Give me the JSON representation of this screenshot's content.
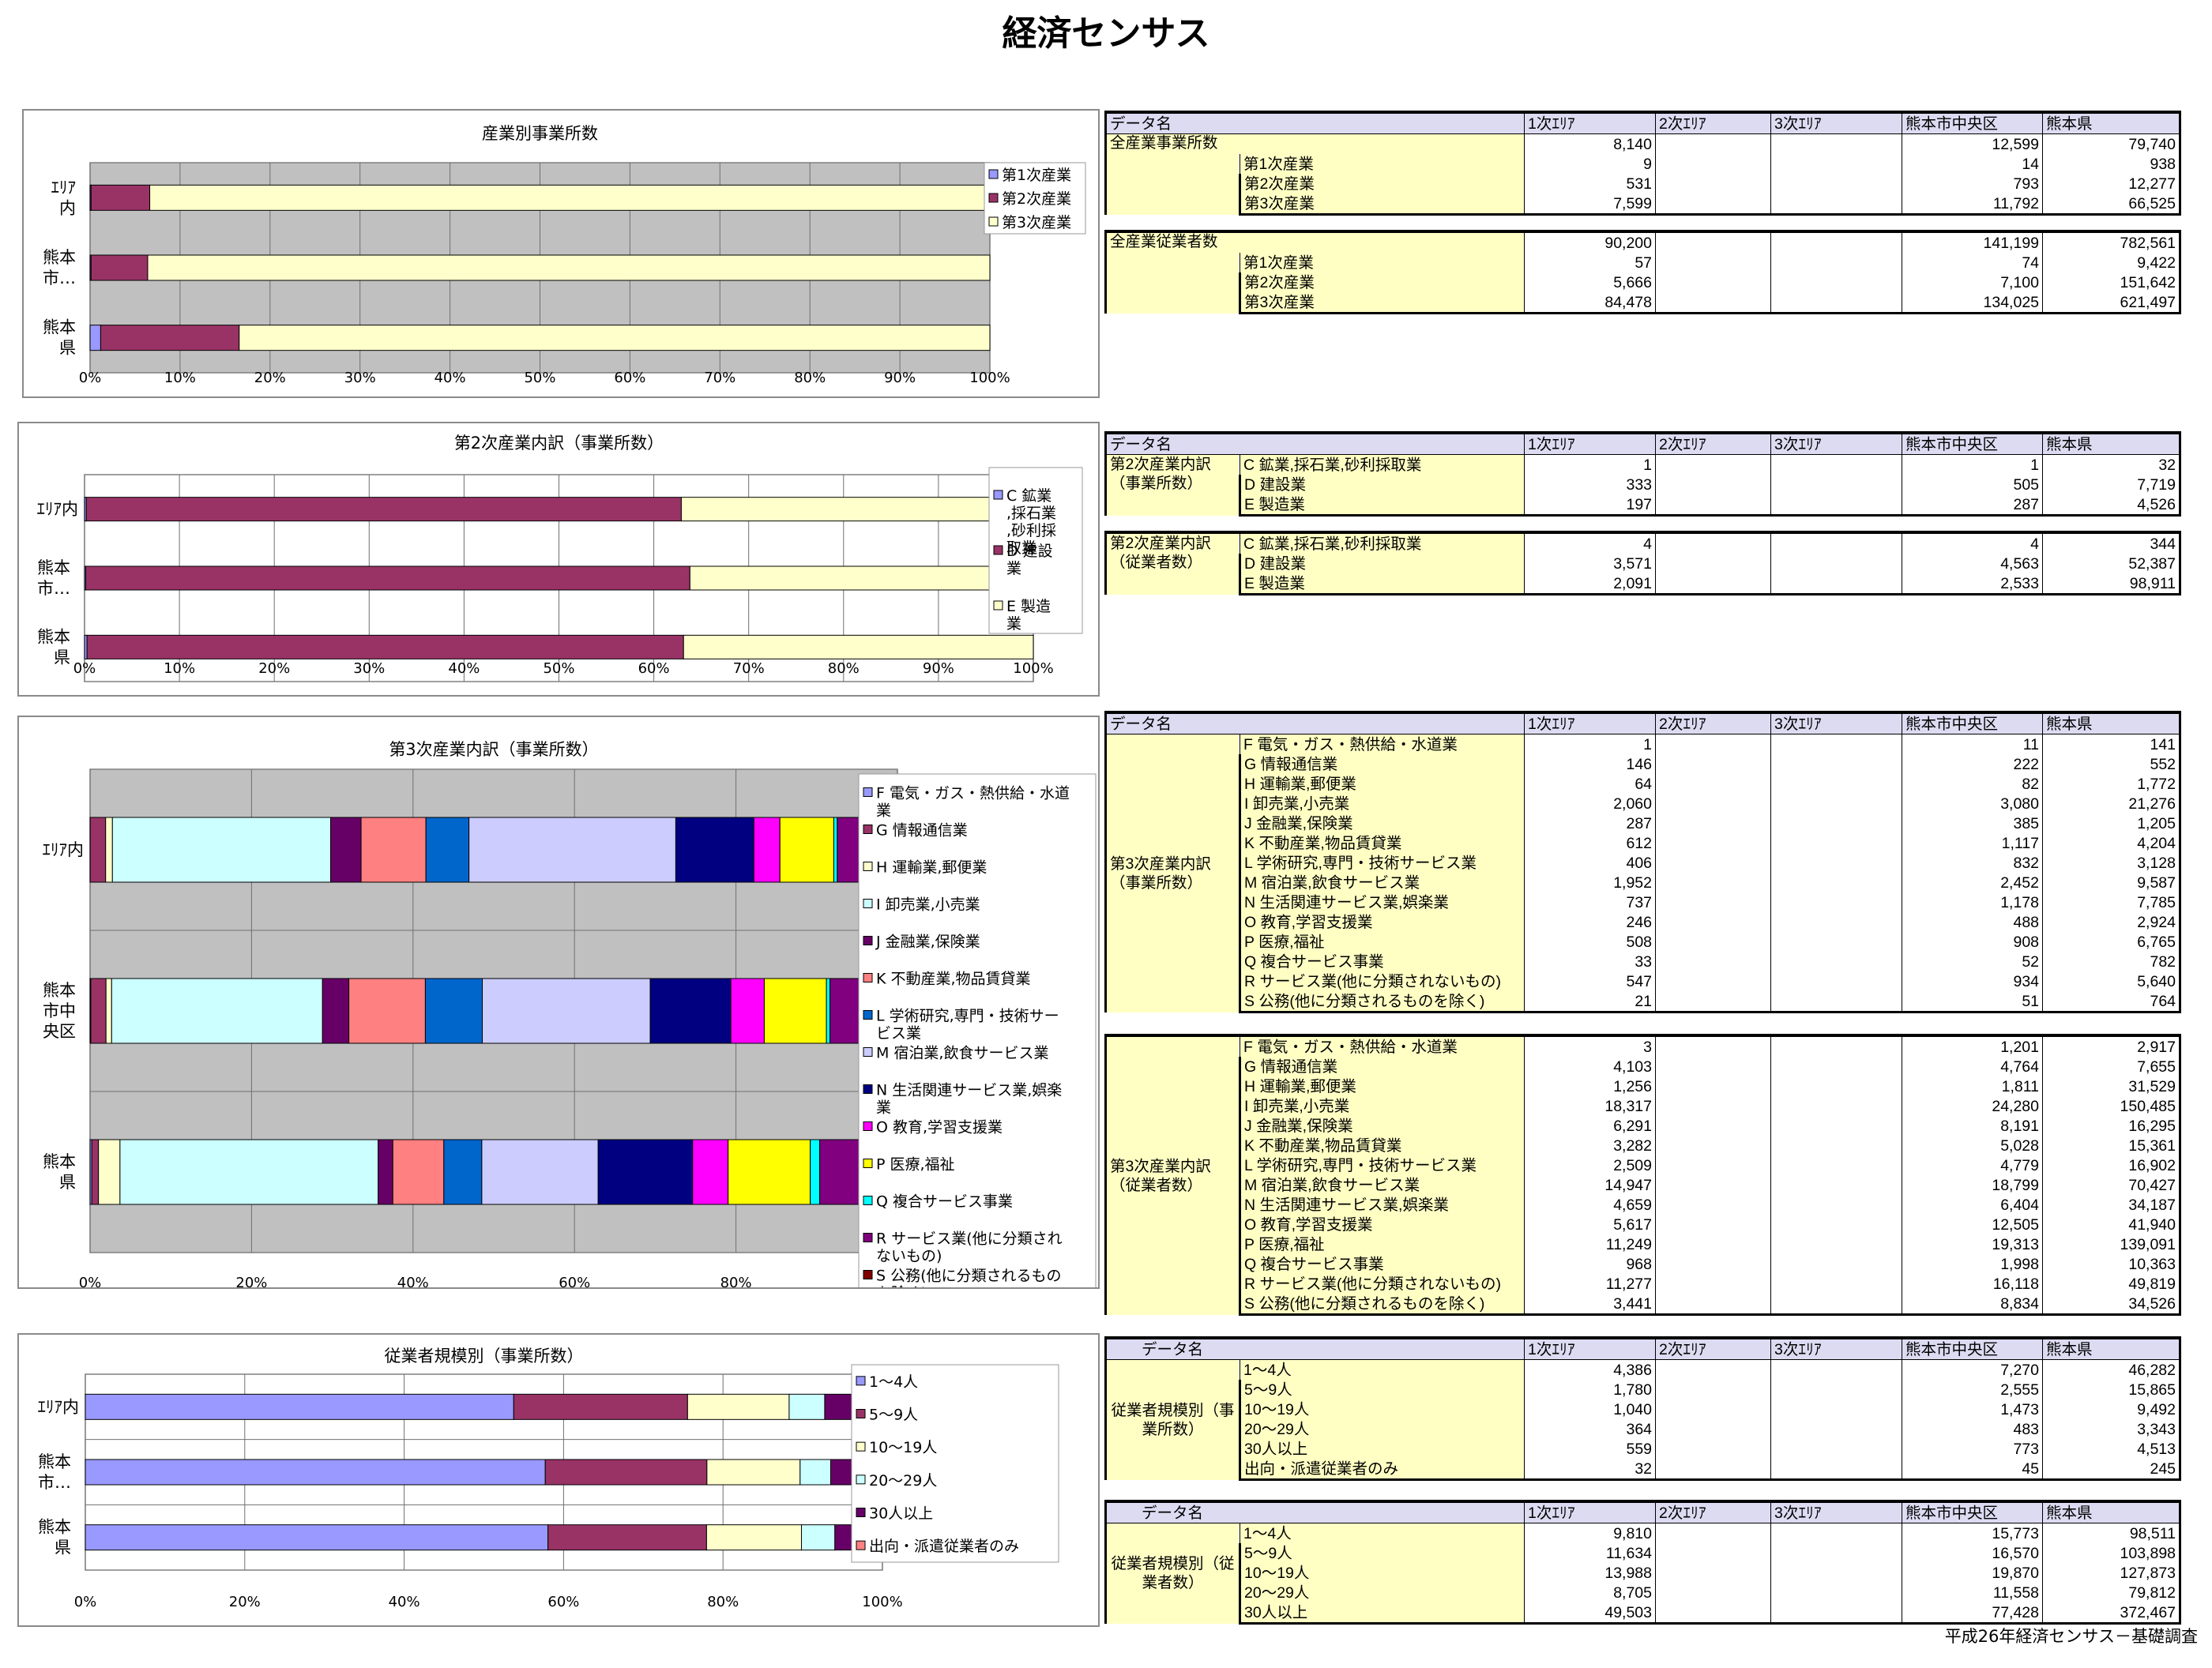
{
  "page_title": "経済センサス",
  "footer": "平成26年経済センサス－基礎調査",
  "table_headers": {
    "name": "データ名",
    "cols": [
      "1次ｴﾘｱ",
      "2次ｴﾘｱ",
      "3次ｴﾘｱ",
      "熊本市中央区",
      "熊本県"
    ]
  },
  "chart_data": [
    {
      "type": "bar",
      "orientation": "horizontal",
      "stacked": "percent",
      "title": "産業別事業所数",
      "categories": [
        "ｴﾘｱ内",
        "熊本市…",
        "熊本県"
      ],
      "series": [
        {
          "name": "第1次産業",
          "color": "#9999ff",
          "values": [
            9,
            14,
            938
          ]
        },
        {
          "name": "第2次産業",
          "color": "#993366",
          "values": [
            531,
            793,
            12277
          ]
        },
        {
          "name": "第3次産業",
          "color": "#ffffcc",
          "values": [
            7599,
            11792,
            66525
          ]
        }
      ],
      "xlim": [
        0,
        100
      ],
      "xticks": [
        "0%",
        "10%",
        "20%",
        "30%",
        "40%",
        "50%",
        "60%",
        "70%",
        "80%",
        "90%",
        "100%"
      ],
      "grid": true,
      "legend": "right"
    },
    {
      "type": "bar",
      "orientation": "horizontal",
      "stacked": "percent",
      "title": "第2次産業内訳（事業所数）",
      "categories": [
        "ｴﾘｱ内",
        "熊本市…",
        "熊本県"
      ],
      "series": [
        {
          "name": "C 鉱業,採石業,砂利採取業",
          "color": "#9999ff",
          "values": [
            1,
            1,
            32
          ]
        },
        {
          "name": "D 建設業",
          "color": "#993366",
          "values": [
            333,
            505,
            7719
          ]
        },
        {
          "name": "E 製造業",
          "color": "#ffffcc",
          "values": [
            197,
            287,
            4526
          ]
        }
      ],
      "xlim": [
        0,
        100
      ],
      "xticks": [
        "0%",
        "10%",
        "20%",
        "30%",
        "40%",
        "50%",
        "60%",
        "70%",
        "80%",
        "90%",
        "100%"
      ],
      "grid": true,
      "legend": "right"
    },
    {
      "type": "bar",
      "orientation": "horizontal",
      "stacked": "percent",
      "title": "第3次産業内訳（事業所数）",
      "categories": [
        "ｴﾘｱ内",
        "熊本市中央区",
        "熊本県"
      ],
      "series": [
        {
          "name": "F 電気・ガス・熱供給・水道業",
          "color": "#9999ff",
          "values": [
            1,
            11,
            141
          ]
        },
        {
          "name": "G 情報通信業",
          "color": "#993366",
          "values": [
            146,
            222,
            552
          ]
        },
        {
          "name": "H 運輸業,郵便業",
          "color": "#ffffcc",
          "values": [
            64,
            82,
            1772
          ]
        },
        {
          "name": "I 卸売業,小売業",
          "color": "#ccffff",
          "values": [
            2060,
            3080,
            21276
          ]
        },
        {
          "name": "J 金融業,保険業",
          "color": "#660066",
          "values": [
            287,
            385,
            1205
          ]
        },
        {
          "name": "K 不動産業,物品賃貸業",
          "color": "#ff8080",
          "values": [
            612,
            1117,
            4204
          ]
        },
        {
          "name": "L 学術研究,専門・技術サービス業",
          "color": "#0066cc",
          "values": [
            406,
            832,
            3128
          ]
        },
        {
          "name": "M 宿泊業,飲食サービス業",
          "color": "#ccccff",
          "values": [
            1952,
            2452,
            9587
          ]
        },
        {
          "name": "N 生活関連サービス業,娯楽業",
          "color": "#000080",
          "values": [
            737,
            1178,
            7785
          ]
        },
        {
          "name": "O 教育,学習支援業",
          "color": "#ff00ff",
          "values": [
            246,
            488,
            2924
          ]
        },
        {
          "name": "P 医療,福祉",
          "color": "#ffff00",
          "values": [
            508,
            908,
            6765
          ]
        },
        {
          "name": "Q 複合サービス事業",
          "color": "#00ffff",
          "values": [
            33,
            52,
            782
          ]
        },
        {
          "name": "R サービス業(他に分類されないもの)",
          "color": "#800080",
          "values": [
            547,
            934,
            5640
          ]
        },
        {
          "name": "S 公務(他に分類されるものを除く)",
          "color": "#800000",
          "values": [
            21,
            51,
            764
          ]
        }
      ],
      "xlim": [
        0,
        100
      ],
      "xticks": [
        "0%",
        "20%",
        "40%",
        "60%",
        "80%",
        "100%"
      ],
      "grid": true,
      "legend": "right"
    },
    {
      "type": "bar",
      "orientation": "horizontal",
      "stacked": "percent",
      "title": "従業者規模別（事業所数）",
      "categories": [
        "ｴﾘｱ内",
        "熊本市…",
        "熊本県"
      ],
      "series": [
        {
          "name": "1～4人",
          "color": "#9999ff",
          "values": [
            4386,
            7270,
            46282
          ]
        },
        {
          "name": "5～9人",
          "color": "#993366",
          "values": [
            1780,
            2555,
            15865
          ]
        },
        {
          "name": "10～19人",
          "color": "#ffffcc",
          "values": [
            1040,
            1473,
            9492
          ]
        },
        {
          "name": "20～29人",
          "color": "#ccffff",
          "values": [
            364,
            483,
            3343
          ]
        },
        {
          "name": "30人以上",
          "color": "#660066",
          "values": [
            559,
            773,
            4513
          ]
        },
        {
          "name": "出向・派遣従業者のみ",
          "color": "#ff8080",
          "values": [
            32,
            45,
            245
          ]
        }
      ],
      "xlim": [
        0,
        100
      ],
      "xticks": [
        "0%",
        "20%",
        "40%",
        "60%",
        "80%",
        "100%"
      ],
      "grid": true,
      "legend": "right"
    }
  ],
  "tables": [
    {
      "group_label": "全産業事業所数",
      "group_style": "inline",
      "first_row_is_total": true,
      "rows": [
        {
          "label": "",
          "values": [
            "8,140",
            "",
            "",
            "12,599",
            "79,740"
          ]
        },
        {
          "label": "第1次産業",
          "values": [
            "9",
            "",
            "",
            "14",
            "938"
          ]
        },
        {
          "label": "第2次産業",
          "values": [
            "531",
            "",
            "",
            "793",
            "12,277"
          ]
        },
        {
          "label": "第3次産業",
          "values": [
            "7,599",
            "",
            "",
            "11,792",
            "66,525"
          ]
        }
      ]
    },
    {
      "group_label": "全産業従業者数",
      "group_style": "inline",
      "first_row_is_total": true,
      "rows": [
        {
          "label": "",
          "values": [
            "90,200",
            "",
            "",
            "141,199",
            "782,561"
          ]
        },
        {
          "label": "第1次産業",
          "values": [
            "57",
            "",
            "",
            "74",
            "9,422"
          ]
        },
        {
          "label": "第2次産業",
          "values": [
            "5,666",
            "",
            "",
            "7,100",
            "151,642"
          ]
        },
        {
          "label": "第3次産業",
          "values": [
            "84,478",
            "",
            "",
            "134,025",
            "621,497"
          ]
        }
      ]
    },
    {
      "group_label": "第2次産業内訳（事業所数）",
      "group_style": "top",
      "rows": [
        {
          "label": "C 鉱業,採石業,砂利採取業",
          "values": [
            "1",
            "",
            "",
            "1",
            "32"
          ]
        },
        {
          "label": "D 建設業",
          "values": [
            "333",
            "",
            "",
            "505",
            "7,719"
          ]
        },
        {
          "label": "E 製造業",
          "values": [
            "197",
            "",
            "",
            "287",
            "4,526"
          ]
        }
      ]
    },
    {
      "group_label": "第2次産業内訳（従業者数）",
      "group_style": "top",
      "rows": [
        {
          "label": "C 鉱業,採石業,砂利採取業",
          "values": [
            "4",
            "",
            "",
            "4",
            "344"
          ]
        },
        {
          "label": "D 建設業",
          "values": [
            "3,571",
            "",
            "",
            "4,563",
            "52,387"
          ]
        },
        {
          "label": "E 製造業",
          "values": [
            "2,091",
            "",
            "",
            "2,533",
            "98,911"
          ]
        }
      ]
    },
    {
      "group_label": "第3次産業内訳（事業所数）",
      "group_style": "middle",
      "rows": [
        {
          "label": "F 電気・ガス・熱供給・水道業",
          "values": [
            "1",
            "",
            "",
            "11",
            "141"
          ]
        },
        {
          "label": "G 情報通信業",
          "values": [
            "146",
            "",
            "",
            "222",
            "552"
          ]
        },
        {
          "label": "H 運輸業,郵便業",
          "values": [
            "64",
            "",
            "",
            "82",
            "1,772"
          ]
        },
        {
          "label": "I 卸売業,小売業",
          "values": [
            "2,060",
            "",
            "",
            "3,080",
            "21,276"
          ]
        },
        {
          "label": "J 金融業,保険業",
          "values": [
            "287",
            "",
            "",
            "385",
            "1,205"
          ]
        },
        {
          "label": "K 不動産業,物品賃貸業",
          "values": [
            "612",
            "",
            "",
            "1,117",
            "4,204"
          ]
        },
        {
          "label": "L 学術研究,専門・技術サービス業",
          "values": [
            "406",
            "",
            "",
            "832",
            "3,128"
          ]
        },
        {
          "label": "M 宿泊業,飲食サービス業",
          "values": [
            "1,952",
            "",
            "",
            "2,452",
            "9,587"
          ]
        },
        {
          "label": "N 生活関連サービス業,娯楽業",
          "values": [
            "737",
            "",
            "",
            "1,178",
            "7,785"
          ]
        },
        {
          "label": "O 教育,学習支援業",
          "values": [
            "246",
            "",
            "",
            "488",
            "2,924"
          ]
        },
        {
          "label": "P 医療,福祉",
          "values": [
            "508",
            "",
            "",
            "908",
            "6,765"
          ]
        },
        {
          "label": "Q 複合サービス事業",
          "values": [
            "33",
            "",
            "",
            "52",
            "782"
          ]
        },
        {
          "label": "R サービス業(他に分類されないもの)",
          "values": [
            "547",
            "",
            "",
            "934",
            "5,640"
          ]
        },
        {
          "label": "S 公務(他に分類されるものを除く)",
          "values": [
            "21",
            "",
            "",
            "51",
            "764"
          ]
        }
      ]
    },
    {
      "group_label": "第3次産業内訳（従業者数）",
      "group_style": "middle",
      "rows": [
        {
          "label": "F 電気・ガス・熱供給・水道業",
          "values": [
            "3",
            "",
            "",
            "1,201",
            "2,917"
          ]
        },
        {
          "label": "G 情報通信業",
          "values": [
            "4,103",
            "",
            "",
            "4,764",
            "7,655"
          ]
        },
        {
          "label": "H 運輸業,郵便業",
          "values": [
            "1,256",
            "",
            "",
            "1,811",
            "31,529"
          ]
        },
        {
          "label": "I 卸売業,小売業",
          "values": [
            "18,317",
            "",
            "",
            "24,280",
            "150,485"
          ]
        },
        {
          "label": "J 金融業,保険業",
          "values": [
            "6,291",
            "",
            "",
            "8,191",
            "16,295"
          ]
        },
        {
          "label": "K 不動産業,物品賃貸業",
          "values": [
            "3,282",
            "",
            "",
            "5,028",
            "15,361"
          ]
        },
        {
          "label": "L 学術研究,専門・技術サービス業",
          "values": [
            "2,509",
            "",
            "",
            "4,779",
            "16,902"
          ]
        },
        {
          "label": "M 宿泊業,飲食サービス業",
          "values": [
            "14,947",
            "",
            "",
            "18,799",
            "70,427"
          ]
        },
        {
          "label": "N 生活関連サービス業,娯楽業",
          "values": [
            "4,659",
            "",
            "",
            "6,404",
            "34,187"
          ]
        },
        {
          "label": "O 教育,学習支援業",
          "values": [
            "5,617",
            "",
            "",
            "12,505",
            "41,940"
          ]
        },
        {
          "label": "P 医療,福祉",
          "values": [
            "11,249",
            "",
            "",
            "19,313",
            "139,091"
          ]
        },
        {
          "label": "Q 複合サービス事業",
          "values": [
            "968",
            "",
            "",
            "1,998",
            "10,363"
          ]
        },
        {
          "label": "R サービス業(他に分類されないもの)",
          "values": [
            "11,277",
            "",
            "",
            "16,118",
            "49,819"
          ]
        },
        {
          "label": "S 公務(他に分類されるものを除く)",
          "values": [
            "3,441",
            "",
            "",
            "8,834",
            "34,526"
          ]
        }
      ]
    },
    {
      "group_label": "従業者規模別（事業所数）",
      "group_style": "center",
      "rows": [
        {
          "label": "1～4人",
          "values": [
            "4,386",
            "",
            "",
            "7,270",
            "46,282"
          ]
        },
        {
          "label": "5～9人",
          "values": [
            "1,780",
            "",
            "",
            "2,555",
            "15,865"
          ]
        },
        {
          "label": "10～19人",
          "values": [
            "1,040",
            "",
            "",
            "1,473",
            "9,492"
          ]
        },
        {
          "label": "20～29人",
          "values": [
            "364",
            "",
            "",
            "483",
            "3,343"
          ]
        },
        {
          "label": "30人以上",
          "values": [
            "559",
            "",
            "",
            "773",
            "4,513"
          ]
        },
        {
          "label": "出向・派遣従業者のみ",
          "values": [
            "32",
            "",
            "",
            "45",
            "245"
          ]
        }
      ]
    },
    {
      "group_label": "従業者規模別（従業者数）",
      "group_style": "center",
      "rows": [
        {
          "label": "1～4人",
          "values": [
            "9,810",
            "",
            "",
            "15,773",
            "98,511"
          ]
        },
        {
          "label": "5～9人",
          "values": [
            "11,634",
            "",
            "",
            "16,570",
            "103,898"
          ]
        },
        {
          "label": "10～19人",
          "values": [
            "13,988",
            "",
            "",
            "19,870",
            "127,873"
          ]
        },
        {
          "label": "20～29人",
          "values": [
            "8,705",
            "",
            "",
            "11,558",
            "79,812"
          ]
        },
        {
          "label": "30人以上",
          "values": [
            "49,503",
            "",
            "",
            "77,428",
            "372,467"
          ]
        }
      ]
    }
  ]
}
